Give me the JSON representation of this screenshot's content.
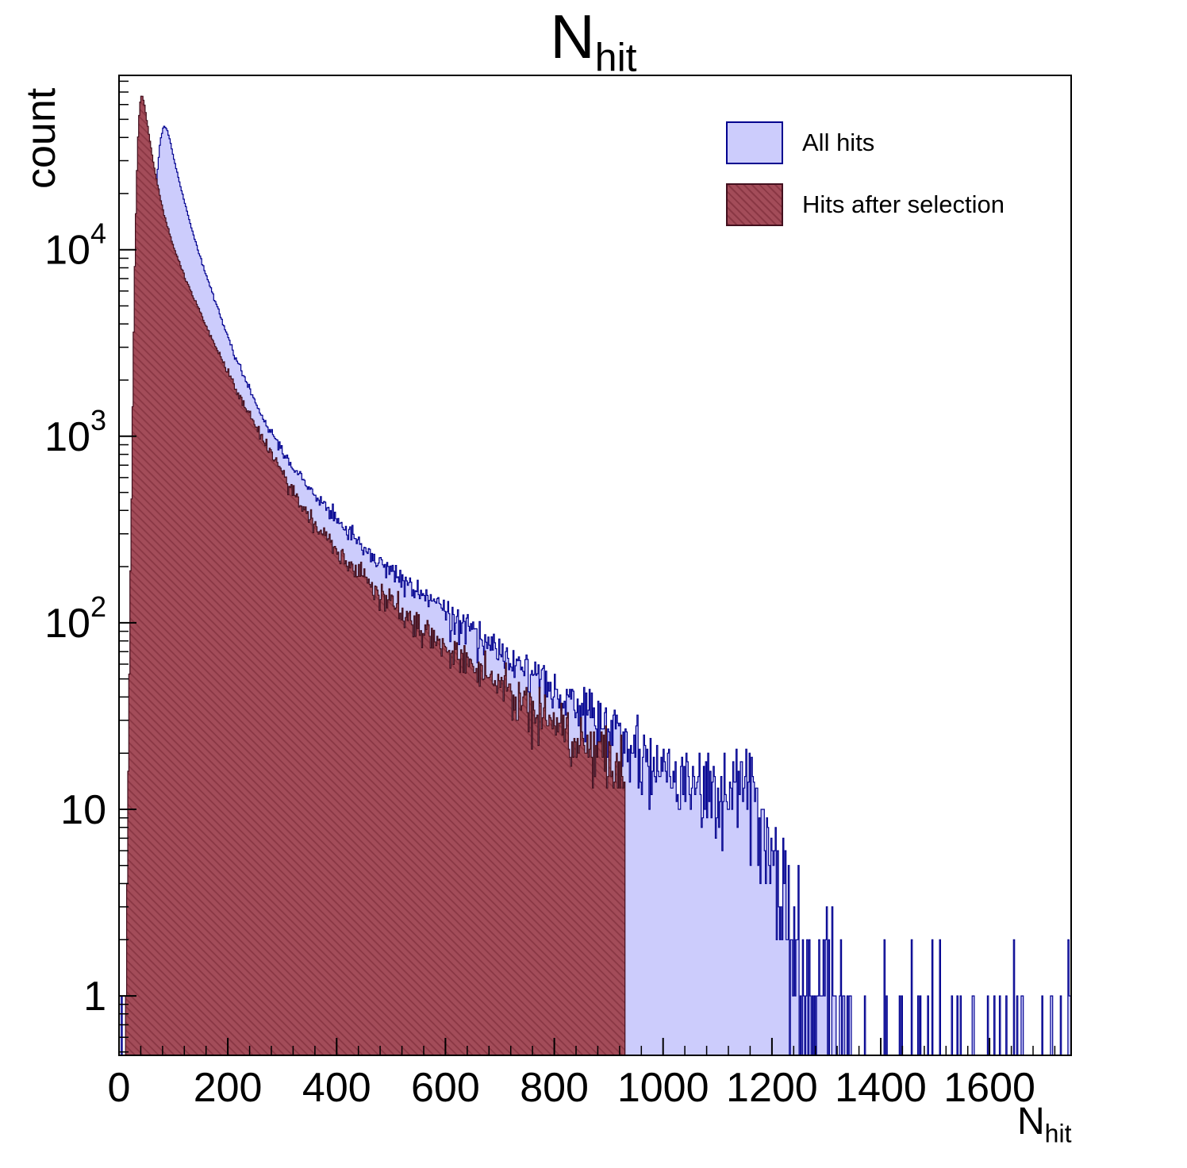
{
  "title": {
    "base": "N",
    "sub": "hit"
  },
  "y_axis_title": "count",
  "x_axis_title": {
    "base": "N",
    "sub": "hit"
  },
  "legend": {
    "items": [
      {
        "label": "All hits"
      },
      {
        "label": "Hits after selection"
      }
    ]
  },
  "chart_data": {
    "type": "histogram",
    "title": "N_hit",
    "xlabel": "N_hit",
    "ylabel": "count",
    "log_y": true,
    "bin_width": 2,
    "x_range": [
      0,
      1750
    ],
    "y_range": [
      0.48,
      86000
    ],
    "x_ticks": {
      "major": [
        0,
        200,
        400,
        600,
        800,
        1000,
        1200,
        1400,
        1600
      ],
      "minor_step": 40
    },
    "y_ticks": [
      {
        "value": 1,
        "base": "1",
        "exp": ""
      },
      {
        "value": 10,
        "base": "10",
        "exp": ""
      },
      {
        "value": 100,
        "base": "10",
        "exp": "2"
      },
      {
        "value": 1000,
        "base": "10",
        "exp": "3"
      },
      {
        "value": 10000,
        "base": "10",
        "exp": "4"
      }
    ],
    "noise": {
      "model": "poisson",
      "seed": 7
    },
    "series": [
      {
        "name": "All hits",
        "fill": "#ccccfc",
        "stroke": "#00008f",
        "peak": {
          "x": 82,
          "count": 46000
        },
        "control_points": [
          [
            0,
            0
          ],
          [
            18,
            0.12
          ],
          [
            30,
            0.8
          ],
          [
            40,
            8
          ],
          [
            46,
            60
          ],
          [
            52,
            600
          ],
          [
            58,
            3500
          ],
          [
            64,
            11000
          ],
          [
            70,
            25000
          ],
          [
            76,
            39000
          ],
          [
            82,
            46000
          ],
          [
            88,
            44500
          ],
          [
            94,
            38500
          ],
          [
            100,
            31500
          ],
          [
            108,
            25200
          ],
          [
            116,
            20200
          ],
          [
            124,
            16400
          ],
          [
            132,
            13500
          ],
          [
            140,
            11200
          ],
          [
            150,
            9000
          ],
          [
            160,
            7300
          ],
          [
            170,
            6000
          ],
          [
            180,
            4950
          ],
          [
            190,
            4100
          ],
          [
            200,
            3400
          ],
          [
            212,
            2750
          ],
          [
            224,
            2260
          ],
          [
            236,
            1890
          ],
          [
            250,
            1540
          ],
          [
            265,
            1260
          ],
          [
            280,
            1050
          ],
          [
            300,
            830
          ],
          [
            320,
            680
          ],
          [
            340,
            570
          ],
          [
            360,
            483
          ],
          [
            380,
            412
          ],
          [
            400,
            355
          ],
          [
            420,
            310
          ],
          [
            440,
            272
          ],
          [
            460,
            240
          ],
          [
            480,
            214
          ],
          [
            500,
            192
          ],
          [
            520,
            172
          ],
          [
            540,
            155
          ],
          [
            560,
            140
          ],
          [
            580,
            127
          ],
          [
            600,
            115
          ],
          [
            620,
            104
          ],
          [
            640,
            95
          ],
          [
            660,
            86
          ],
          [
            680,
            78
          ],
          [
            700,
            71
          ],
          [
            720,
            65
          ],
          [
            740,
            59
          ],
          [
            760,
            54
          ],
          [
            780,
            49
          ],
          [
            800,
            45
          ],
          [
            820,
            41
          ],
          [
            840,
            38
          ],
          [
            860,
            35
          ],
          [
            880,
            32
          ],
          [
            900,
            29
          ],
          [
            920,
            26
          ],
          [
            940,
            23
          ],
          [
            960,
            20
          ],
          [
            980,
            18
          ],
          [
            1000,
            17
          ],
          [
            1020,
            16
          ],
          [
            1040,
            15
          ],
          [
            1060,
            14
          ],
          [
            1080,
            13
          ],
          [
            1100,
            13
          ],
          [
            1120,
            12
          ],
          [
            1140,
            13
          ],
          [
            1155,
            16
          ],
          [
            1170,
            12
          ],
          [
            1185,
            8
          ],
          [
            1200,
            6
          ],
          [
            1215,
            4.5
          ],
          [
            1230,
            3
          ],
          [
            1245,
            2.2
          ],
          [
            1260,
            1.6
          ],
          [
            1275,
            1.2
          ],
          [
            1290,
            1.0
          ],
          [
            1310,
            0.8
          ],
          [
            1330,
            0.6
          ],
          [
            1350,
            0.45
          ],
          [
            1380,
            0.3
          ],
          [
            1420,
            0.22
          ],
          [
            1470,
            0.18
          ],
          [
            1520,
            0.16
          ],
          [
            1580,
            0.16
          ],
          [
            1640,
            0.16
          ],
          [
            1700,
            0.18
          ],
          [
            1750,
            0.18
          ]
        ]
      },
      {
        "name": "Hits after selection",
        "fill": "#a34c59",
        "hatch": "#8a3744",
        "stroke": "#43101e",
        "peak": {
          "x": 42,
          "count": 68000
        },
        "cutoff_x": 930,
        "control_points": [
          [
            0,
            0
          ],
          [
            8,
            0.2
          ],
          [
            14,
            2
          ],
          [
            18,
            30
          ],
          [
            22,
            300
          ],
          [
            26,
            2500
          ],
          [
            30,
            12000
          ],
          [
            34,
            35000
          ],
          [
            38,
            60000
          ],
          [
            42,
            68000
          ],
          [
            46,
            62000
          ],
          [
            50,
            52000
          ],
          [
            54,
            43500
          ],
          [
            58,
            36500
          ],
          [
            62,
            31000
          ],
          [
            66,
            26500
          ],
          [
            72,
            21500
          ],
          [
            78,
            17800
          ],
          [
            84,
            15000
          ],
          [
            90,
            13000
          ],
          [
            96,
            11400
          ],
          [
            104,
            9700
          ],
          [
            112,
            8400
          ],
          [
            120,
            7200
          ],
          [
            130,
            6200
          ],
          [
            140,
            5300
          ],
          [
            150,
            4550
          ],
          [
            160,
            3900
          ],
          [
            170,
            3380
          ],
          [
            180,
            2930
          ],
          [
            190,
            2550
          ],
          [
            200,
            2220
          ],
          [
            212,
            1880
          ],
          [
            224,
            1600
          ],
          [
            236,
            1370
          ],
          [
            250,
            1150
          ],
          [
            265,
            960
          ],
          [
            280,
            800
          ],
          [
            300,
            630
          ],
          [
            320,
            495
          ],
          [
            340,
            408
          ],
          [
            360,
            340
          ],
          [
            380,
            288
          ],
          [
            400,
            246
          ],
          [
            420,
            213
          ],
          [
            440,
            186
          ],
          [
            460,
            163
          ],
          [
            480,
            144
          ],
          [
            500,
            128
          ],
          [
            520,
            114
          ],
          [
            540,
            102
          ],
          [
            560,
            92
          ],
          [
            580,
            83
          ],
          [
            600,
            75
          ],
          [
            620,
            68
          ],
          [
            640,
            61
          ],
          [
            660,
            55
          ],
          [
            680,
            50
          ],
          [
            700,
            46
          ],
          [
            720,
            42
          ],
          [
            740,
            38
          ],
          [
            760,
            35
          ],
          [
            780,
            32
          ],
          [
            800,
            29
          ],
          [
            820,
            26
          ],
          [
            840,
            24
          ],
          [
            860,
            22
          ],
          [
            880,
            20
          ],
          [
            900,
            18.5
          ],
          [
            912,
            17
          ],
          [
            922,
            16
          ],
          [
            928,
            15
          ],
          [
            930,
            14
          ]
        ]
      }
    ]
  }
}
